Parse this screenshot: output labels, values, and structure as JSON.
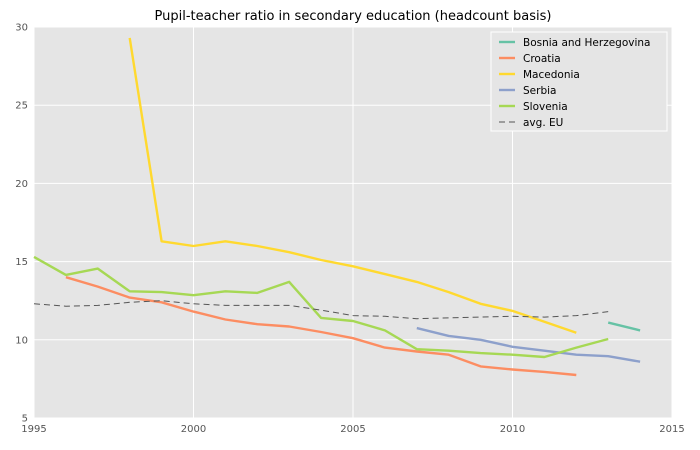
{
  "chart_data": {
    "type": "line",
    "title": "Pupil-teacher ratio in secondary education (headcount basis)",
    "xlabel": "",
    "ylabel": "",
    "xlim": [
      1995,
      2015
    ],
    "ylim": [
      5,
      30
    ],
    "x_ticks": [
      "1995",
      "2000",
      "2005",
      "2010",
      "2015"
    ],
    "y_ticks": [
      "5",
      "10",
      "15",
      "20",
      "25",
      "30"
    ],
    "grid": true,
    "legend_position": "top-right",
    "background": "#e5e5e5",
    "series": [
      {
        "name": "Bosnia and Herzegovina",
        "color": "#66c2a5",
        "dash": "solid",
        "x": [
          2013,
          2014
        ],
        "y": [
          11.1,
          10.6
        ]
      },
      {
        "name": "Croatia",
        "color": "#fc8d62",
        "dash": "solid",
        "x": [
          1996,
          1997,
          1998,
          1999,
          2000,
          2001,
          2002,
          2003,
          2004,
          2005,
          2006,
          2007,
          2008,
          2009,
          2010,
          2011,
          2012
        ],
        "y": [
          14.0,
          13.4,
          12.7,
          12.4,
          11.8,
          11.3,
          11.0,
          10.85,
          10.5,
          10.1,
          9.5,
          9.25,
          9.05,
          8.3,
          8.1,
          7.95,
          7.75
        ]
      },
      {
        "name": "Macedonia",
        "color": "#ffd92f",
        "dash": "solid",
        "x": [
          1998,
          1999,
          2000,
          2001,
          2002,
          2003,
          2004,
          2005,
          2006,
          2007,
          2008,
          2009,
          2010,
          2011,
          2012
        ],
        "y": [
          29.3,
          16.3,
          16.0,
          16.3,
          16.0,
          15.6,
          15.1,
          14.7,
          14.2,
          13.7,
          13.05,
          12.3,
          11.85,
          11.15,
          10.45
        ]
      },
      {
        "name": "Serbia",
        "color": "#8da0cb",
        "dash": "solid",
        "x": [
          2007,
          2008,
          2009,
          2010,
          2011,
          2012,
          2013,
          2014
        ],
        "y": [
          10.75,
          10.25,
          10.0,
          9.55,
          9.3,
          9.05,
          8.95,
          8.6
        ]
      },
      {
        "name": "Slovenia",
        "color": "#a6d854",
        "dash": "solid",
        "x": [
          1995,
          1996,
          1997,
          1998,
          1999,
          2000,
          2001,
          2002,
          2003,
          2004,
          2005,
          2006,
          2007,
          2008,
          2009,
          2010,
          2011,
          2012,
          2013
        ],
        "y": [
          15.3,
          14.15,
          14.55,
          13.1,
          13.05,
          12.85,
          13.1,
          13.0,
          13.7,
          11.4,
          11.2,
          10.6,
          9.4,
          9.3,
          9.15,
          9.05,
          8.9,
          9.5,
          10.05
        ]
      },
      {
        "name": "avg. EU",
        "color": "#555555",
        "dash": "dashed",
        "x": [
          1995,
          1996,
          1997,
          1998,
          1999,
          2000,
          2001,
          2002,
          2003,
          2004,
          2005,
          2006,
          2007,
          2008,
          2009,
          2010,
          2011,
          2012,
          2013
        ],
        "y": [
          12.3,
          12.15,
          12.2,
          12.4,
          12.5,
          12.3,
          12.2,
          12.2,
          12.2,
          11.9,
          11.55,
          11.5,
          11.35,
          11.4,
          11.45,
          11.5,
          11.45,
          11.55,
          11.8
        ]
      }
    ]
  }
}
